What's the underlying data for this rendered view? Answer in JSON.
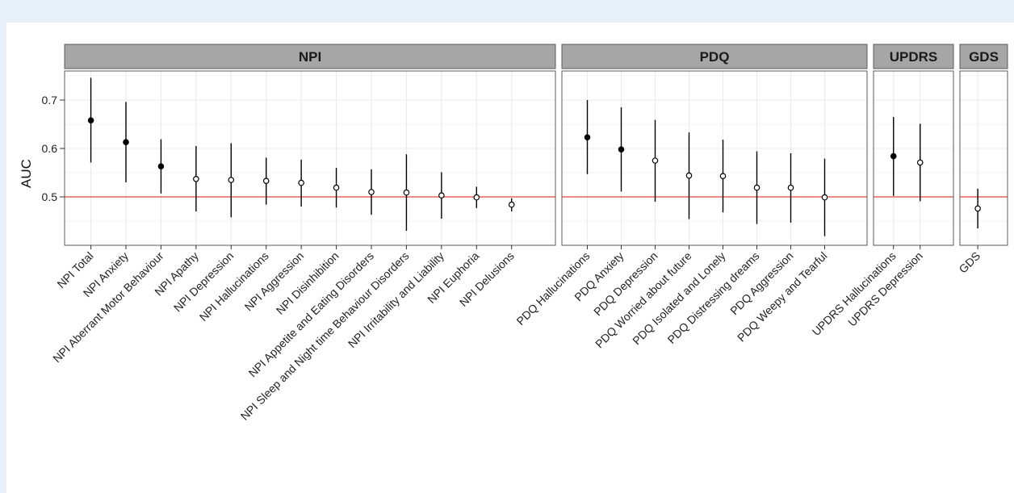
{
  "chart_data": {
    "type": "scatter",
    "subtype": "point-range (faceted)",
    "title": "",
    "xlabel": "",
    "ylabel": "AUC",
    "ylim": [
      0.4,
      0.76
    ],
    "yticks": [
      0.5,
      0.6,
      0.7
    ],
    "reference_line": {
      "y": 0.5,
      "color": "#e8463a"
    },
    "grid": true,
    "point_style_note": "filled = significant, open = not significant",
    "facets": [
      {
        "name": "NPI",
        "items": [
          {
            "label": "NPI Total",
            "auc": 0.658,
            "low": 0.571,
            "high": 0.746,
            "filled": true
          },
          {
            "label": "NPI Anxiety",
            "auc": 0.613,
            "low": 0.53,
            "high": 0.696,
            "filled": true
          },
          {
            "label": "NPI Aberrant Motor Behaviour",
            "auc": 0.563,
            "low": 0.507,
            "high": 0.619,
            "filled": true
          },
          {
            "label": "NPI Apathy",
            "auc": 0.537,
            "low": 0.47,
            "high": 0.605,
            "filled": false
          },
          {
            "label": "NPI Depression",
            "auc": 0.535,
            "low": 0.458,
            "high": 0.611,
            "filled": false
          },
          {
            "label": "NPI Hallucinations",
            "auc": 0.533,
            "low": 0.484,
            "high": 0.581,
            "filled": false
          },
          {
            "label": "NPI Aggression",
            "auc": 0.529,
            "low": 0.48,
            "high": 0.577,
            "filled": false
          },
          {
            "label": "NPI Disinhibition",
            "auc": 0.519,
            "low": 0.478,
            "high": 0.56,
            "filled": false
          },
          {
            "label": "NPI Appetite and Eating Disorders",
            "auc": 0.51,
            "low": 0.463,
            "high": 0.557,
            "filled": false
          },
          {
            "label": "NPI Sleep and Night time Behaviour Disorders",
            "auc": 0.509,
            "low": 0.43,
            "high": 0.588,
            "filled": false
          },
          {
            "label": "NPI Irritability and Liability",
            "auc": 0.503,
            "low": 0.455,
            "high": 0.551,
            "filled": false
          },
          {
            "label": "NPI Euphoria",
            "auc": 0.499,
            "low": 0.477,
            "high": 0.521,
            "filled": false
          },
          {
            "label": "NPI Delusions",
            "auc": 0.484,
            "low": 0.47,
            "high": 0.497,
            "filled": false
          }
        ]
      },
      {
        "name": "PDQ",
        "items": [
          {
            "label": "PDQ Hallucinations",
            "auc": 0.623,
            "low": 0.547,
            "high": 0.7,
            "filled": true
          },
          {
            "label": "PDQ Anxiety",
            "auc": 0.598,
            "low": 0.511,
            "high": 0.685,
            "filled": true
          },
          {
            "label": "PDQ Depression",
            "auc": 0.575,
            "low": 0.49,
            "high": 0.659,
            "filled": false
          },
          {
            "label": "PDQ Worried about future",
            "auc": 0.544,
            "low": 0.454,
            "high": 0.633,
            "filled": false
          },
          {
            "label": "PDQ Isolated and Lonely",
            "auc": 0.543,
            "low": 0.468,
            "high": 0.618,
            "filled": false
          },
          {
            "label": "PDQ Distressing dreams",
            "auc": 0.519,
            "low": 0.444,
            "high": 0.594,
            "filled": false
          },
          {
            "label": "PDQ Aggression",
            "auc": 0.519,
            "low": 0.447,
            "high": 0.59,
            "filled": false
          },
          {
            "label": "PDQ Weepy and Tearful",
            "auc": 0.499,
            "low": 0.419,
            "high": 0.579,
            "filled": false
          }
        ]
      },
      {
        "name": "UPDRS",
        "items": [
          {
            "label": "UPDRS Hallucinations",
            "auc": 0.584,
            "low": 0.502,
            "high": 0.665,
            "filled": true
          },
          {
            "label": "UPDRS Depression",
            "auc": 0.571,
            "low": 0.491,
            "high": 0.651,
            "filled": false
          }
        ]
      },
      {
        "name": "GDS",
        "items": [
          {
            "label": "GDS",
            "auc": 0.476,
            "low": 0.435,
            "high": 0.517,
            "filled": false
          }
        ]
      }
    ]
  },
  "colors": {
    "page_background": "#e8f1fa",
    "panel_background": "#ffffff",
    "strip_fill": "#a6a6a6",
    "panel_border": "#5a5a5a",
    "gridline": "#ebebeb",
    "reference_line": "#e8463a",
    "point": "#000000"
  }
}
